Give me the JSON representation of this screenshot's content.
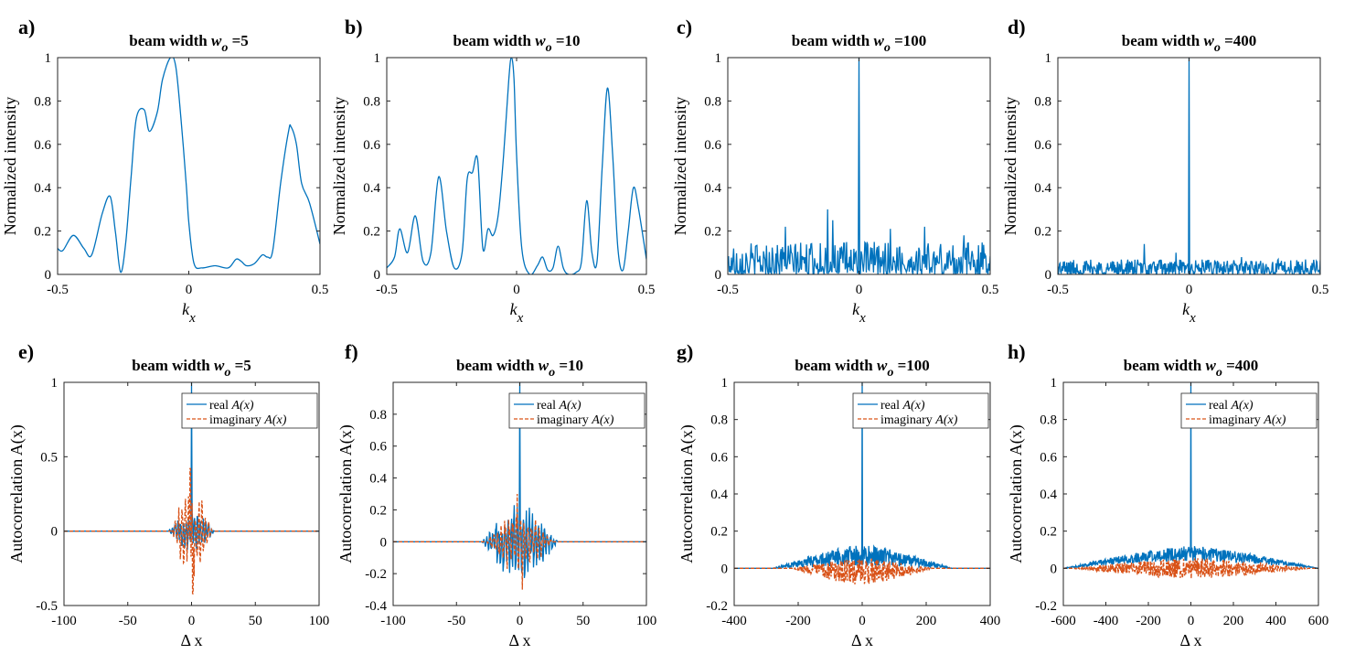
{
  "colors": {
    "real": "#0072BD",
    "imag": "#D95319",
    "axis": "#262626"
  },
  "chart_data": [
    {
      "panel": "a)",
      "type": "line",
      "title_prefix": "beam width ",
      "title_var": "w",
      "title_sub": "o",
      "title_suffix": " =5",
      "xlabel_main": "k",
      "xlabel_sub": "x",
      "ylabel": "Normalized intensity",
      "xlim": [
        -0.5,
        0.5
      ],
      "ylim": [
        0,
        1
      ],
      "xticks": [
        -0.5,
        0,
        0.5
      ],
      "xtick_labels": [
        "-0.5",
        "0",
        "0.5"
      ],
      "yticks": [
        0,
        0.2,
        0.4,
        0.6,
        0.8,
        1
      ],
      "ytick_labels": [
        "0",
        "0.2",
        "0.4",
        "0.6",
        "0.8",
        "1"
      ],
      "series": [
        {
          "name": "intensity",
          "style": "solid",
          "color": "real",
          "x": [
            -0.5,
            -0.48,
            -0.44,
            -0.4,
            -0.37,
            -0.33,
            -0.3,
            -0.28,
            -0.26,
            -0.24,
            -0.22,
            -0.2,
            -0.17,
            -0.15,
            -0.12,
            -0.1,
            -0.07,
            -0.05,
            -0.03,
            -0.01,
            0.0,
            0.02,
            0.05,
            0.1,
            0.15,
            0.18,
            0.2,
            0.22,
            0.25,
            0.28,
            0.3,
            0.32,
            0.35,
            0.38,
            0.39,
            0.41,
            0.43,
            0.46,
            0.5
          ],
          "y": [
            0.12,
            0.11,
            0.18,
            0.12,
            0.09,
            0.28,
            0.36,
            0.2,
            0.01,
            0.15,
            0.45,
            0.72,
            0.76,
            0.66,
            0.75,
            0.9,
            1.0,
            0.96,
            0.72,
            0.42,
            0.24,
            0.05,
            0.03,
            0.04,
            0.03,
            0.07,
            0.06,
            0.04,
            0.05,
            0.09,
            0.08,
            0.11,
            0.42,
            0.66,
            0.68,
            0.6,
            0.42,
            0.33,
            0.14
          ]
        }
      ]
    },
    {
      "panel": "b)",
      "type": "line",
      "title_prefix": "beam width ",
      "title_var": "w",
      "title_sub": "o",
      "title_suffix": " =10",
      "xlabel_main": "k",
      "xlabel_sub": "x",
      "ylabel": "Normalized intensity",
      "xlim": [
        -0.5,
        0.5
      ],
      "ylim": [
        0,
        1
      ],
      "xticks": [
        -0.5,
        0,
        0.5
      ],
      "xtick_labels": [
        "-0.5",
        "0",
        "0.5"
      ],
      "yticks": [
        0,
        0.2,
        0.4,
        0.6,
        0.8,
        1
      ],
      "ytick_labels": [
        "0",
        "0.2",
        "0.4",
        "0.6",
        "0.8",
        "1"
      ],
      "series": [
        {
          "name": "intensity",
          "style": "solid",
          "color": "real",
          "x": [
            -0.5,
            -0.47,
            -0.45,
            -0.42,
            -0.39,
            -0.36,
            -0.33,
            -0.3,
            -0.27,
            -0.24,
            -0.21,
            -0.19,
            -0.17,
            -0.15,
            -0.13,
            -0.11,
            -0.09,
            -0.07,
            -0.05,
            -0.03,
            -0.02,
            -0.01,
            0.0,
            0.02,
            0.05,
            0.08,
            0.1,
            0.12,
            0.14,
            0.16,
            0.18,
            0.2,
            0.23,
            0.25,
            0.27,
            0.29,
            0.31,
            0.33,
            0.35,
            0.37,
            0.39,
            0.41,
            0.43,
            0.45,
            0.47,
            0.5
          ],
          "y": [
            0.03,
            0.08,
            0.21,
            0.1,
            0.27,
            0.06,
            0.1,
            0.45,
            0.2,
            0.03,
            0.1,
            0.44,
            0.47,
            0.53,
            0.12,
            0.21,
            0.18,
            0.28,
            0.55,
            0.9,
            1.0,
            0.9,
            0.55,
            0.12,
            0.0,
            0.04,
            0.08,
            0.02,
            0.03,
            0.13,
            0.03,
            0.0,
            0.01,
            0.06,
            0.34,
            0.1,
            0.06,
            0.5,
            0.86,
            0.55,
            0.12,
            0.02,
            0.2,
            0.4,
            0.3,
            0.07
          ]
        }
      ]
    },
    {
      "panel": "c)",
      "type": "line",
      "title_prefix": "beam width ",
      "title_var": "w",
      "title_sub": "o",
      "title_suffix": " =100",
      "xlabel_main": "k",
      "xlabel_sub": "x",
      "ylabel": "Normalized intensity",
      "xlim": [
        -0.5,
        0.5
      ],
      "ylim": [
        0,
        1
      ],
      "xticks": [
        -0.5,
        0,
        0.5
      ],
      "xtick_labels": [
        "-0.5",
        "0",
        "0.5"
      ],
      "yticks": [
        0,
        0.2,
        0.4,
        0.6,
        0.8,
        1
      ],
      "ytick_labels": [
        "0",
        "0.2",
        "0.4",
        "0.6",
        "0.8",
        "1"
      ],
      "series": [
        {
          "name": "intensity",
          "style": "solid",
          "color": "real",
          "generated": "noise",
          "count": 360,
          "peak": 1.0,
          "peak_width": 0.004,
          "noise_amp": 0.075,
          "spikes": [
            [
              -0.28,
              0.22
            ],
            [
              -0.12,
              0.3
            ],
            [
              -0.1,
              0.25
            ],
            [
              0.12,
              0.21
            ],
            [
              0.25,
              0.22
            ],
            [
              0.4,
              0.18
            ]
          ]
        }
      ]
    },
    {
      "panel": "d)",
      "type": "line",
      "title_prefix": "beam width ",
      "title_var": "w",
      "title_sub": "o",
      "title_suffix": " =400",
      "xlabel_main": "k",
      "xlabel_sub": "x",
      "ylabel": "Normalized intensity",
      "xlim": [
        -0.5,
        0.5
      ],
      "ylim": [
        0,
        1
      ],
      "xticks": [
        -0.5,
        0,
        0.5
      ],
      "xtick_labels": [
        "-0.5",
        "0",
        "0.5"
      ],
      "yticks": [
        0,
        0.2,
        0.4,
        0.6,
        0.8,
        1
      ],
      "ytick_labels": [
        "0",
        "0.2",
        "0.4",
        "0.6",
        "0.8",
        "1"
      ],
      "series": [
        {
          "name": "intensity",
          "style": "solid",
          "color": "real",
          "generated": "noise",
          "count": 480,
          "peak": 1.0,
          "peak_width": 0.0015,
          "noise_amp": 0.035,
          "spikes": [
            [
              -0.17,
              0.14
            ],
            [
              -0.05,
              0.1
            ],
            [
              0.2,
              0.08
            ]
          ]
        }
      ]
    },
    {
      "panel": "e)",
      "type": "line",
      "title_prefix": "beam width ",
      "title_var": "w",
      "title_sub": "o",
      "title_suffix": " =5",
      "xlabel_main": "Δ x",
      "xlabel_sub": "",
      "ylabel": "Autocorrelation A(x)",
      "xlim": [
        -100,
        100
      ],
      "ylim": [
        -0.5,
        1
      ],
      "xticks": [
        -100,
        -50,
        0,
        50,
        100
      ],
      "xtick_labels": [
        "-100",
        "-50",
        "0",
        "50",
        "100"
      ],
      "yticks": [
        -0.5,
        0,
        0.5,
        1
      ],
      "ytick_labels": [
        "-0.5",
        "0",
        "0.5",
        "1"
      ],
      "legend": [
        "real ",
        "imaginary "
      ],
      "legend_expr": "A(x)",
      "legend_pos": "top-right",
      "series": [
        {
          "name": "real A(x)",
          "style": "solid",
          "color": "real",
          "generated": "osc",
          "peak": 1.0,
          "halfwidth": 18,
          "amp": 0.1,
          "period": 2.2
        },
        {
          "name": "imaginary A(x)",
          "style": "dashed",
          "color": "imag",
          "generated": "osc",
          "peak": 0.0,
          "halfwidth": 16,
          "amp": 0.22,
          "period": 2.6,
          "extremes": [
            [
              -1,
              0.42
            ],
            [
              1,
              -0.42
            ]
          ]
        }
      ]
    },
    {
      "panel": "f)",
      "type": "line",
      "title_prefix": "beam width ",
      "title_var": "w",
      "title_sub": "o",
      "title_suffix": " =10",
      "xlabel_main": "Δ x",
      "xlabel_sub": "",
      "ylabel": "Autocorrelation A(x)",
      "xlim": [
        -100,
        100
      ],
      "ylim": [
        -0.4,
        1
      ],
      "xticks": [
        -100,
        -50,
        0,
        50,
        100
      ],
      "xtick_labels": [
        "-100",
        "-50",
        "0",
        "50",
        "100"
      ],
      "yticks": [
        -0.4,
        -0.2,
        0,
        0.2,
        0.4,
        0.6,
        0.8
      ],
      "ytick_labels": [
        "-0.4",
        "-0.2",
        "0",
        "0.2",
        "0.4",
        "0.6",
        "0.8"
      ],
      "legend": [
        "real ",
        "imaginary "
      ],
      "legend_expr": "A(x)",
      "legend_pos": "top-right",
      "series": [
        {
          "name": "real A(x)",
          "style": "solid",
          "color": "real",
          "generated": "osc",
          "peak": 1.0,
          "halfwidth": 30,
          "amp": 0.17,
          "period": 2.4
        },
        {
          "name": "imaginary A(x)",
          "style": "dashed",
          "color": "imag",
          "generated": "osc",
          "peak": 0.0,
          "halfwidth": 26,
          "amp": 0.14,
          "period": 3.0,
          "extremes": [
            [
              -2,
              0.3
            ],
            [
              2,
              -0.3
            ]
          ]
        }
      ]
    },
    {
      "panel": "g)",
      "type": "line",
      "title_prefix": "beam width ",
      "title_var": "w",
      "title_sub": "o",
      "title_suffix": " =100",
      "xlabel_main": "Δ x",
      "xlabel_sub": "",
      "ylabel": "Autocorrelation A(x)",
      "xlim": [
        -400,
        400
      ],
      "ylim": [
        -0.2,
        1
      ],
      "xticks": [
        -400,
        -200,
        0,
        200,
        400
      ],
      "xtick_labels": [
        "-400",
        "-200",
        "0",
        "200",
        "400"
      ],
      "yticks": [
        -0.2,
        0,
        0.2,
        0.4,
        0.6,
        0.8,
        1
      ],
      "ytick_labels": [
        "-0.2",
        "0",
        "0.2",
        "0.4",
        "0.6",
        "0.8",
        "1"
      ],
      "legend": [
        "real ",
        "imaginary "
      ],
      "legend_expr": "A(x)",
      "legend_pos": "top-right",
      "series": [
        {
          "name": "real A(x)",
          "style": "solid",
          "color": "real",
          "generated": "envelope",
          "peak": 1.0,
          "halfwidth": 280,
          "base": 0.07,
          "amp": 0.07,
          "offset": 0.0
        },
        {
          "name": "imaginary A(x)",
          "style": "dashed",
          "color": "imag",
          "generated": "envelope",
          "peak": 0.0,
          "halfwidth": 220,
          "base": -0.02,
          "amp": 0.09,
          "offset": 0.0
        }
      ]
    },
    {
      "panel": "h)",
      "type": "line",
      "title_prefix": "beam width ",
      "title_var": "w",
      "title_sub": "o",
      "title_suffix": " =400",
      "xlabel_main": "Δ x",
      "xlabel_sub": "",
      "ylabel": "Autocorrelation A(x)",
      "xlim": [
        -600,
        600
      ],
      "ylim": [
        -0.2,
        1
      ],
      "xticks": [
        -600,
        -400,
        -200,
        0,
        200,
        400,
        600
      ],
      "xtick_labels": [
        "-600",
        "-400",
        "-200",
        "0",
        "200",
        "400",
        "600"
      ],
      "yticks": [
        -0.2,
        0,
        0.2,
        0.4,
        0.6,
        0.8,
        1
      ],
      "ytick_labels": [
        "-0.2",
        "0",
        "0.2",
        "0.4",
        "0.6",
        "0.8",
        "1"
      ],
      "legend": [
        "real ",
        "imaginary "
      ],
      "legend_expr": "A(x)",
      "legend_pos": "top-right",
      "series": [
        {
          "name": "real A(x)",
          "style": "solid",
          "color": "real",
          "generated": "envelope",
          "peak": 1.0,
          "halfwidth": 600,
          "base": 0.08,
          "amp": 0.05,
          "offset": 0.0
        },
        {
          "name": "imaginary A(x)",
          "style": "dashed",
          "color": "imag",
          "generated": "envelope",
          "peak": 0.0,
          "halfwidth": 560,
          "base": 0.0,
          "amp": 0.07,
          "offset": 0.0
        }
      ]
    }
  ]
}
